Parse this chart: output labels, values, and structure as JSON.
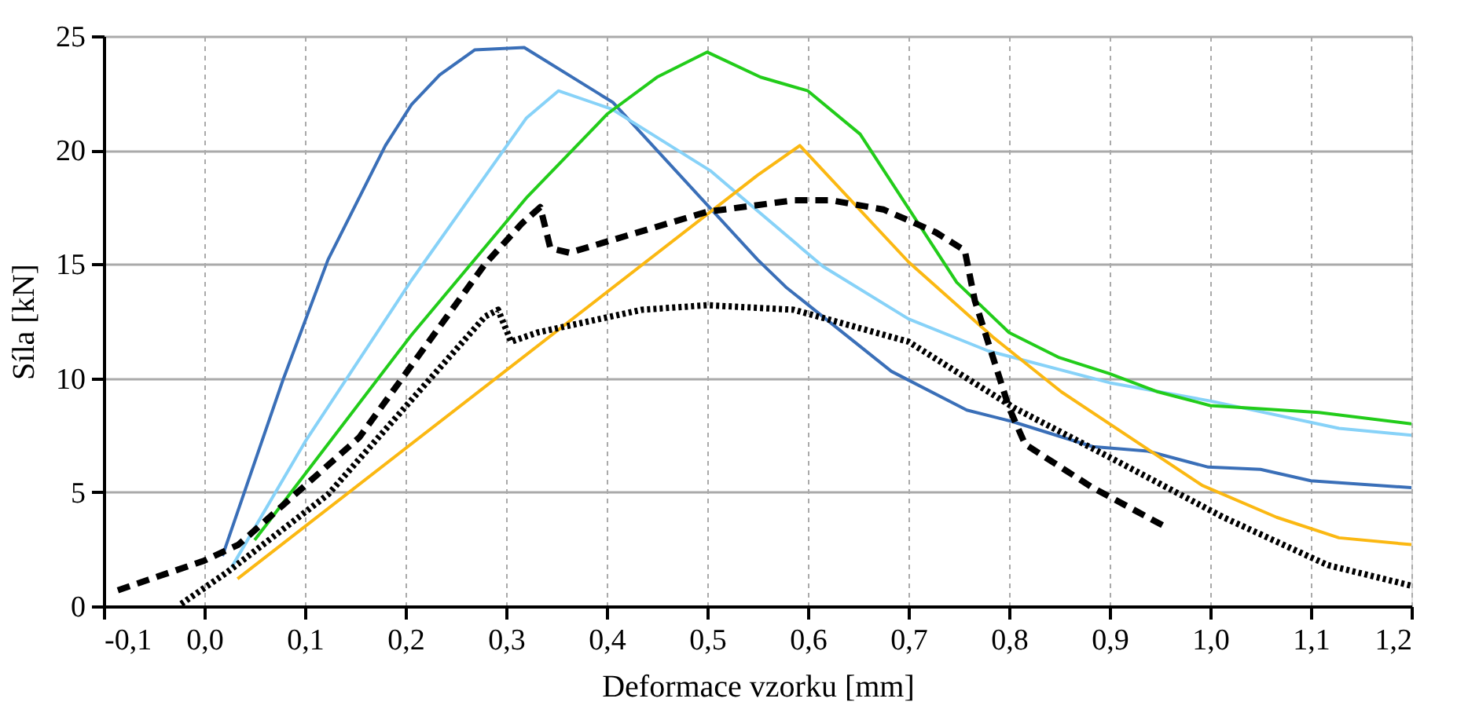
{
  "chart_data": {
    "type": "line",
    "xlabel": "Deformace vzorku [mm]",
    "ylabel": "Síla [kN]",
    "xlim": [
      -0.1,
      1.2
    ],
    "ylim": [
      0,
      25
    ],
    "xticks": [
      {
        "value": -0.1,
        "label": "-0,1"
      },
      {
        "value": 0.0,
        "label": "0,0"
      },
      {
        "value": 0.1,
        "label": "0,1"
      },
      {
        "value": 0.2,
        "label": "0,2"
      },
      {
        "value": 0.3,
        "label": "0,3"
      },
      {
        "value": 0.4,
        "label": "0,4"
      },
      {
        "value": 0.5,
        "label": "0,5"
      },
      {
        "value": 0.6,
        "label": "0,6"
      },
      {
        "value": 0.7,
        "label": "0,7"
      },
      {
        "value": 0.8,
        "label": "0,8"
      },
      {
        "value": 0.9,
        "label": "0,9"
      },
      {
        "value": 1.0,
        "label": "1,0"
      },
      {
        "value": 1.1,
        "label": "1,1"
      },
      {
        "value": 1.2,
        "label": "1,2"
      }
    ],
    "yticks": [
      0,
      5,
      10,
      15,
      20,
      25
    ],
    "grid": true,
    "marker": "none",
    "series": [
      {
        "color": "#3a6fb8",
        "line_style": "solid",
        "x": [
          0.018,
          0.078,
          0.123,
          0.18,
          0.206,
          0.234,
          0.269,
          0.318,
          0.406,
          0.55,
          0.578,
          0.683,
          0.758,
          0.803,
          0.883,
          0.938,
          0.998,
          1.05,
          1.1,
          1.2
        ],
        "values": [
          2.2,
          9.9,
          15.2,
          20.2,
          22.0,
          23.3,
          24.4,
          24.5,
          22.1,
          15.2,
          14.0,
          10.3,
          8.6,
          8.1,
          7.0,
          6.8,
          6.1,
          6.0,
          5.5,
          5.2
        ]
      },
      {
        "color": "#87d2f8",
        "line_style": "solid",
        "x": [
          0.027,
          0.1,
          0.206,
          0.32,
          0.352,
          0.405,
          0.503,
          0.519,
          0.615,
          0.7,
          0.779,
          0.9,
          1.0,
          1.128,
          1.2
        ],
        "values": [
          1.7,
          7.2,
          14.3,
          21.4,
          22.6,
          21.8,
          19.1,
          18.5,
          14.9,
          12.6,
          11.2,
          9.8,
          9.0,
          7.8,
          7.5
        ]
      },
      {
        "color": "#22cc1a",
        "line_style": "solid",
        "x": [
          0.05,
          0.206,
          0.32,
          0.401,
          0.45,
          0.5,
          0.553,
          0.6,
          0.652,
          0.748,
          0.8,
          0.85,
          0.9,
          0.948,
          1.0,
          1.108,
          1.2
        ],
        "values": [
          2.9,
          11.9,
          17.9,
          21.6,
          23.2,
          24.3,
          23.2,
          22.6,
          20.7,
          14.2,
          12.0,
          10.9,
          10.2,
          9.4,
          8.8,
          8.5,
          8.0
        ]
      },
      {
        "color": "#fbb812",
        "line_style": "solid",
        "x": [
          0.033,
          0.55,
          0.592,
          0.7,
          0.784,
          0.852,
          0.992,
          1.066,
          1.128,
          1.2
        ],
        "values": [
          1.2,
          18.9,
          20.2,
          15.1,
          11.8,
          9.4,
          5.3,
          3.9,
          3.0,
          2.7
        ]
      },
      {
        "color": "#000000",
        "line_style": "dashed",
        "x": [
          -0.086,
          0.0,
          0.034,
          0.154,
          0.279,
          0.316,
          0.334,
          0.344,
          0.363,
          0.5,
          0.586,
          0.623,
          0.675,
          0.727,
          0.756,
          0.766,
          0.8,
          0.816,
          0.883,
          0.959
        ],
        "values": [
          0.7,
          2.0,
          2.7,
          7.4,
          15.0,
          16.8,
          17.5,
          15.7,
          15.5,
          17.3,
          17.8,
          17.8,
          17.4,
          16.4,
          15.6,
          13.4,
          8.7,
          7.1,
          5.2,
          3.4
        ]
      },
      {
        "color": "#000000",
        "line_style": "dotted",
        "x": [
          -0.023,
          0.023,
          0.123,
          0.279,
          0.292,
          0.305,
          0.331,
          0.435,
          0.5,
          0.586,
          0.7,
          0.805,
          0.91,
          1.013,
          1.117,
          1.2
        ],
        "values": [
          0.1,
          1.5,
          4.9,
          12.7,
          13.0,
          11.6,
          12.0,
          13.0,
          13.2,
          13.0,
          11.6,
          8.7,
          6.3,
          3.9,
          1.8,
          0.9
        ]
      }
    ]
  }
}
